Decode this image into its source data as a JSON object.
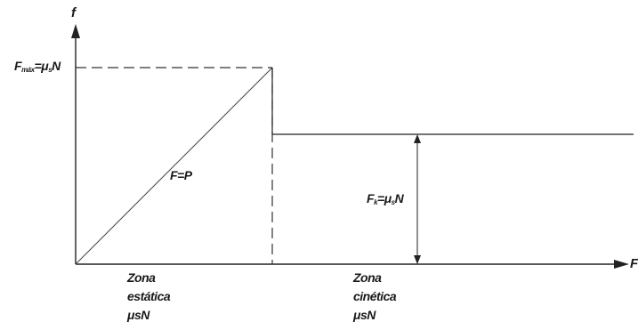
{
  "diagram": {
    "title": "",
    "axes": {
      "y_label": "f",
      "x_label": "F"
    },
    "labels": {
      "fmax": {
        "prefix": "F",
        "sub": "máx",
        "eq": "=μ",
        "sub2": "s",
        "suffix": "N"
      },
      "applied": "F=P",
      "fk": {
        "prefix": "F",
        "sub": "k",
        "eq": "=μ",
        "sub2": "s",
        "suffix": "N"
      }
    },
    "zones": {
      "static": {
        "line1": "Zona",
        "line2": "estática",
        "line3": "μsN"
      },
      "kinetic": {
        "line1": "Zona",
        "line2": "cinética",
        "line3": "μsN"
      }
    }
  }
}
